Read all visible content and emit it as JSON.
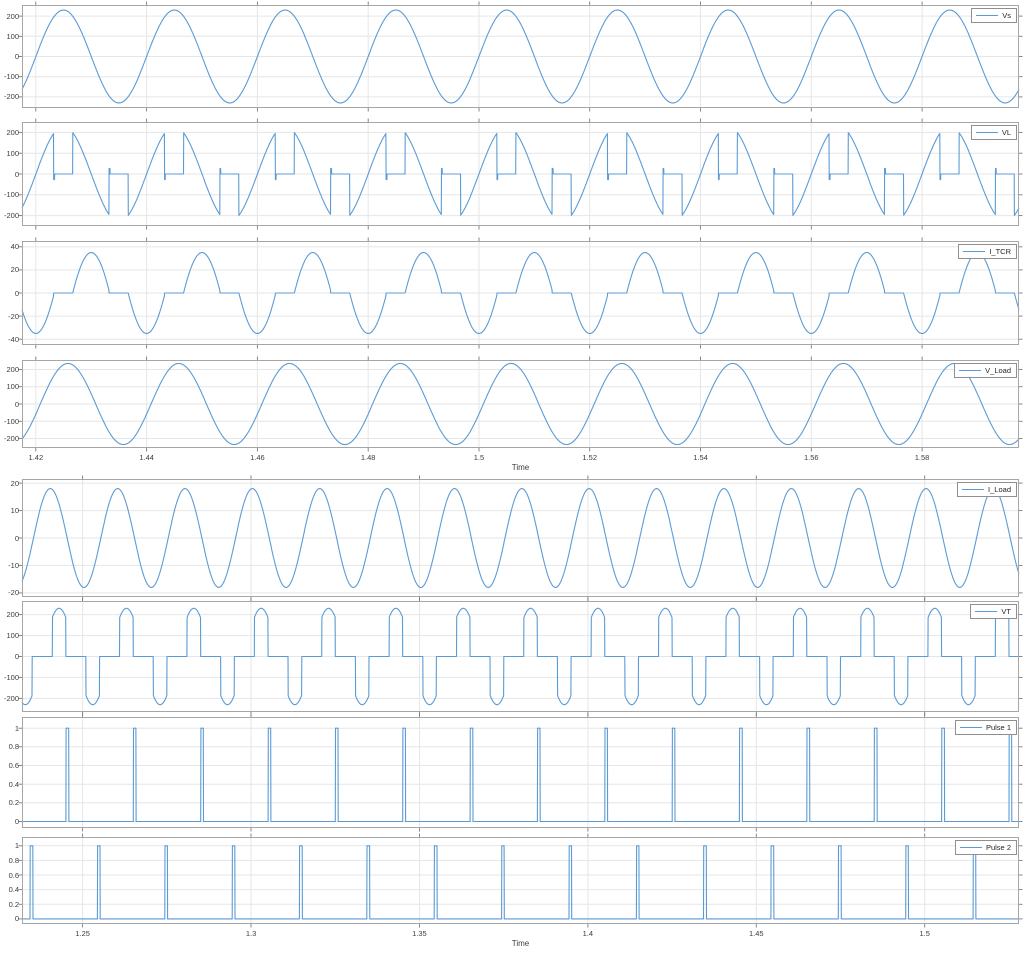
{
  "figure": {
    "xlabel": "Time",
    "line_color": "#5b9bd5",
    "grid_color": "#e6e6e6",
    "axis_color": "#a6a6a6",
    "tick_color": "#7a7a7a",
    "label_color": "#3d3d3d",
    "legend_border_color": "#8f8f8f",
    "background": "#ffffff"
  },
  "chart_data": [
    {
      "legend": "Vs",
      "type": "line",
      "signal": "sine",
      "frequency": 50,
      "amplitude": 230,
      "phase": 0,
      "x_range": [
        1.4175,
        1.5975
      ],
      "ylim": [
        -255,
        255
      ],
      "y_ticks": [
        -200,
        -100,
        0,
        100,
        200
      ],
      "y_tick_labels": [
        "-200",
        "-100",
        "0",
        "100",
        "200"
      ],
      "x_ticks": [
        1.42,
        1.44,
        1.46,
        1.48,
        1.5,
        1.52,
        1.54,
        1.56,
        1.58
      ],
      "x_tick_labels": [
        "1.42",
        "1.44",
        "1.46",
        "1.48",
        "1.5",
        "1.52",
        "1.54",
        "1.56",
        "1.58"
      ],
      "show_x_tick_labels": false,
      "xlabel": "",
      "grid": true,
      "legend_position": "top-right"
    },
    {
      "legend": "VL",
      "type": "line",
      "signal": "gated_sine",
      "frequency": 50,
      "amplitude": 230,
      "phase": 0,
      "windows": [
        [
          0.3333,
          0.6611
        ],
        [
          0.8333,
          1.1611
        ]
      ],
      "spike_amp": 27,
      "spike_width": 0.008,
      "x_range": [
        1.4175,
        1.5975
      ],
      "ylim": [
        -250,
        250
      ],
      "y_ticks": [
        -200,
        -100,
        0,
        100,
        200
      ],
      "y_tick_labels": [
        "-200",
        "-100",
        "0",
        "100",
        "200"
      ],
      "x_ticks": [
        1.42,
        1.44,
        1.46,
        1.48,
        1.5,
        1.52,
        1.54,
        1.56,
        1.58
      ],
      "x_tick_labels": [
        "1.42",
        "1.44",
        "1.46",
        "1.48",
        "1.5",
        "1.52",
        "1.54",
        "1.56",
        "1.58"
      ],
      "show_x_tick_labels": false,
      "xlabel": "",
      "grid": true,
      "legend_position": "top-right"
    },
    {
      "legend": "I_TCR",
      "type": "line",
      "signal": "tcr_current",
      "frequency": 50,
      "amplitude": 70,
      "phase": 0,
      "windows": [
        [
          0.3333,
          0.6611
        ],
        [
          0.8333,
          1.1611
        ]
      ],
      "x_range": [
        1.4175,
        1.5975
      ],
      "ylim": [
        -45,
        45
      ],
      "y_ticks": [
        -40,
        -20,
        0,
        20,
        40
      ],
      "y_tick_labels": [
        "-40",
        "-20",
        "0",
        "20",
        "40"
      ],
      "x_ticks": [
        1.42,
        1.44,
        1.46,
        1.48,
        1.5,
        1.52,
        1.54,
        1.56,
        1.58
      ],
      "x_tick_labels": [
        "1.42",
        "1.44",
        "1.46",
        "1.48",
        "1.5",
        "1.52",
        "1.54",
        "1.56",
        "1.58"
      ],
      "show_x_tick_labels": false,
      "xlabel": "",
      "grid": true,
      "legend_position": "top-right"
    },
    {
      "legend": "V_Load",
      "type": "line",
      "signal": "sine",
      "frequency": 50,
      "amplitude": 235,
      "phase": -0.04,
      "x_range": [
        1.4175,
        1.5975
      ],
      "ylim": [
        -255,
        255
      ],
      "y_ticks": [
        -200,
        -100,
        0,
        100,
        200
      ],
      "y_tick_labels": [
        "-200",
        "-100",
        "0",
        "100",
        "200"
      ],
      "x_ticks": [
        1.42,
        1.44,
        1.46,
        1.48,
        1.5,
        1.52,
        1.54,
        1.56,
        1.58
      ],
      "x_tick_labels": [
        "1.42",
        "1.44",
        "1.46",
        "1.48",
        "1.5",
        "1.52",
        "1.54",
        "1.56",
        "1.58"
      ],
      "show_x_tick_labels": true,
      "xlabel": "Time",
      "grid": true,
      "legend_position": "top-right"
    },
    {
      "legend": "I_Load",
      "type": "line",
      "signal": "sine",
      "frequency": 50,
      "amplitude": 18,
      "phase": 0.23,
      "x_range": [
        1.232,
        1.528
      ],
      "ylim": [
        -21.5,
        21.5
      ],
      "y_ticks": [
        -20,
        -10,
        0,
        10,
        20
      ],
      "y_tick_labels": [
        "-20",
        "-10",
        "0",
        "10",
        "20"
      ],
      "x_ticks": [
        1.25,
        1.3,
        1.35,
        1.4,
        1.45,
        1.5
      ],
      "x_tick_labels": [
        "1.25",
        "1.3",
        "1.35",
        "1.4",
        "1.45",
        "1.5"
      ],
      "show_x_tick_labels": false,
      "xlabel": "",
      "grid": true,
      "legend_position": "top-right"
    },
    {
      "legend": "VT",
      "type": "line",
      "signal": "peak_gated",
      "frequency": 50,
      "amplitude": 230,
      "phase": 0.1,
      "lobe_half_width": 0.1,
      "x_range": [
        1.232,
        1.528
      ],
      "ylim": [
        -265,
        265
      ],
      "y_ticks": [
        -200,
        -100,
        0,
        100,
        200
      ],
      "y_tick_labels": [
        "-200",
        "-100",
        "0",
        "100",
        "200"
      ],
      "x_ticks": [
        1.25,
        1.3,
        1.35,
        1.4,
        1.45,
        1.5
      ],
      "x_tick_labels": [
        "1.25",
        "1.3",
        "1.35",
        "1.4",
        "1.45",
        "1.5"
      ],
      "show_x_tick_labels": false,
      "xlabel": "",
      "grid": true,
      "legend_position": "top-right"
    },
    {
      "legend": "Pulse 1",
      "type": "line",
      "signal": "pulse",
      "frequency": 50,
      "phase": 0.747,
      "duty": 0.04,
      "high": 1,
      "low": 0,
      "x_range": [
        1.232,
        1.528
      ],
      "ylim": [
        -0.07,
        1.12
      ],
      "y_ticks": [
        0,
        0.2,
        0.4,
        0.6,
        0.8,
        1
      ],
      "y_tick_labels": [
        "0",
        "0.2",
        "0.4",
        "0.6",
        "0.8",
        "1"
      ],
      "x_ticks": [
        1.25,
        1.3,
        1.35,
        1.4,
        1.45,
        1.5
      ],
      "x_tick_labels": [
        "1.25",
        "1.3",
        "1.35",
        "1.4",
        "1.45",
        "1.5"
      ],
      "show_x_tick_labels": false,
      "xlabel": "",
      "grid": true,
      "legend_position": "top-right"
    },
    {
      "legend": "Pulse 2",
      "type": "line",
      "signal": "pulse",
      "frequency": 50,
      "phase": 0.28,
      "duty": 0.04,
      "high": 1,
      "low": 0,
      "x_range": [
        1.232,
        1.528
      ],
      "ylim": [
        -0.07,
        1.12
      ],
      "y_ticks": [
        0,
        0.2,
        0.4,
        0.6,
        0.8,
        1
      ],
      "y_tick_labels": [
        "0",
        "0.2",
        "0.4",
        "0.6",
        "0.8",
        "1"
      ],
      "x_ticks": [
        1.25,
        1.3,
        1.35,
        1.4,
        1.45,
        1.5
      ],
      "x_tick_labels": [
        "1.25",
        "1.3",
        "1.35",
        "1.4",
        "1.45",
        "1.5"
      ],
      "show_x_tick_labels": true,
      "xlabel": "Time",
      "grid": true,
      "legend_position": "top-right"
    }
  ]
}
